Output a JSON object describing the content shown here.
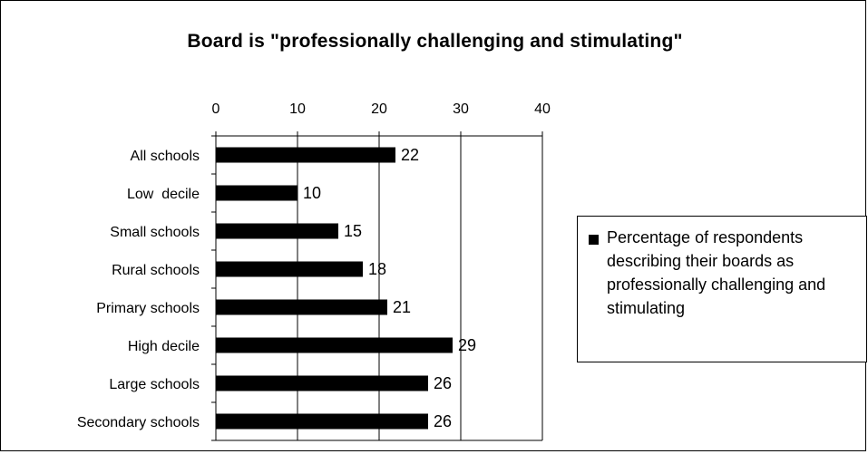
{
  "chart_data": {
    "type": "bar",
    "orientation": "horizontal",
    "title": "Board is \"professionally challenging and stimulating\"",
    "categories": [
      "All schools",
      "Low  decile",
      "Small schools",
      "Rural schools",
      "Primary schools",
      "High decile",
      "Large schools",
      "Secondary schools"
    ],
    "series": [
      {
        "name": "Percentage of respondents describing their boards as professionally challenging and stimulating",
        "values": [
          22,
          10,
          15,
          18,
          21,
          29,
          26,
          26
        ],
        "color": "#000000"
      }
    ],
    "data_labels": [
      "22",
      "10",
      "15",
      "18",
      "21",
      "29",
      "26",
      "26"
    ],
    "xlim": [
      0,
      40
    ],
    "x_ticks": [
      0,
      10,
      20,
      30,
      40
    ],
    "x_axis_position": "top",
    "gridlines": "vertical",
    "legend_position": "right"
  }
}
